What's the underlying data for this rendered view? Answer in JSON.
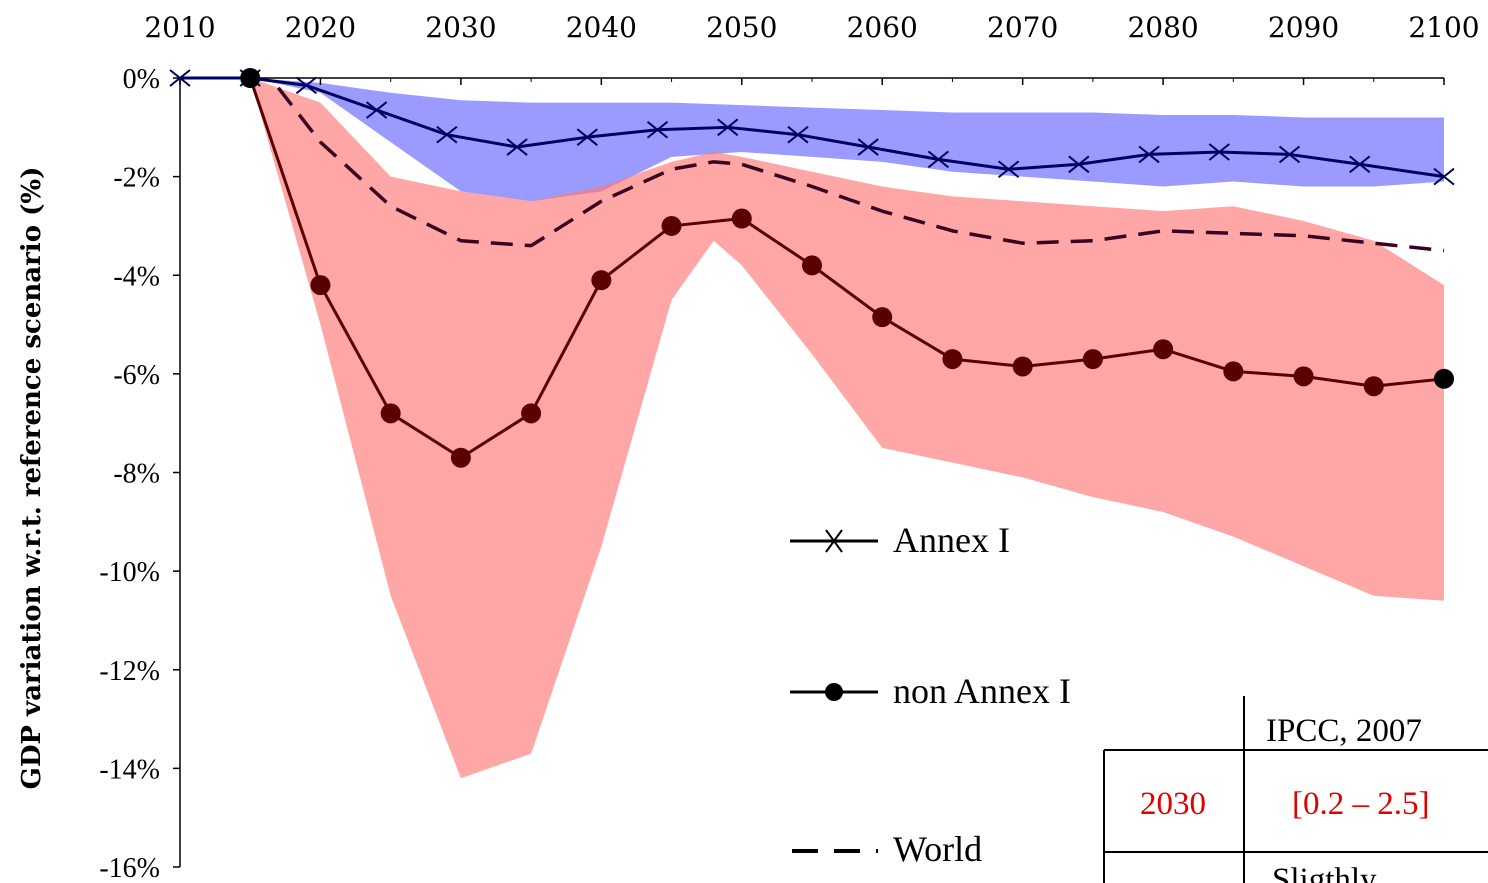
{
  "chart_data": {
    "type": "line",
    "ylabel": "GDP variation w.r.t. reference scenario (%)",
    "xlabel": "",
    "xlim": [
      2010,
      2100
    ],
    "ylim": [
      -16,
      0
    ],
    "x_ticks": [
      2010,
      2020,
      2030,
      2040,
      2050,
      2060,
      2070,
      2080,
      2090,
      2100
    ],
    "y_ticks": [
      0,
      -2,
      -4,
      -6,
      -8,
      -10,
      -12,
      -14,
      -16
    ],
    "y_tick_labels": [
      "0%",
      "-2%",
      "-4%",
      "-6%",
      "-8%",
      "-10%",
      "-12%",
      "-14%",
      "-16%"
    ],
    "x_axis_position": "top",
    "grid": false,
    "legend_position": "center-bottom",
    "series": [
      {
        "name": "Annex I",
        "color": "#000060",
        "marker": "x",
        "style": "solid",
        "x": [
          2010,
          2015,
          2019,
          2024,
          2029,
          2034,
          2039,
          2044,
          2049,
          2054,
          2059,
          2064,
          2069,
          2074,
          2079,
          2084,
          2089,
          2094,
          2100
        ],
        "values": [
          0.0,
          0.0,
          -0.15,
          -0.65,
          -1.15,
          -1.4,
          -1.2,
          -1.05,
          -1.0,
          -1.15,
          -1.4,
          -1.65,
          -1.85,
          -1.75,
          -1.55,
          -1.5,
          -1.55,
          -1.75,
          -2.0
        ]
      },
      {
        "name": "non Annex I",
        "color": "#5a0000",
        "marker": "circle",
        "style": "solid",
        "x": [
          2015,
          2020,
          2025,
          2030,
          2035,
          2040,
          2045,
          2050,
          2055,
          2060,
          2065,
          2070,
          2075,
          2080,
          2085,
          2090,
          2095,
          2100
        ],
        "values": [
          0.0,
          -4.2,
          -6.8,
          -7.7,
          -6.8,
          -4.1,
          -3.0,
          -2.85,
          -3.8,
          -4.85,
          -5.7,
          -5.85,
          -5.7,
          -5.5,
          -5.95,
          -6.05,
          -6.25,
          -6.1
        ]
      },
      {
        "name": "World",
        "color": "#3a0020",
        "marker": "none",
        "style": "dashed",
        "x": [
          2017,
          2020,
          2025,
          2030,
          2035,
          2040,
          2045,
          2048,
          2050,
          2055,
          2060,
          2065,
          2070,
          2075,
          2080,
          2085,
          2090,
          2095,
          2100
        ],
        "values": [
          -0.2,
          -1.3,
          -2.6,
          -3.3,
          -3.4,
          -2.5,
          -1.85,
          -1.7,
          -1.75,
          -2.2,
          -2.7,
          -3.1,
          -3.35,
          -3.3,
          -3.1,
          -3.15,
          -3.2,
          -3.35,
          -3.5
        ]
      }
    ],
    "bands": [
      {
        "name": "Annex I range",
        "color": "#6666ff",
        "x": [
          2015,
          2020,
          2025,
          2030,
          2035,
          2040,
          2045,
          2050,
          2055,
          2060,
          2065,
          2070,
          2075,
          2080,
          2085,
          2090,
          2095,
          2100
        ],
        "upper": [
          0.0,
          -0.1,
          -0.3,
          -0.45,
          -0.5,
          -0.5,
          -0.5,
          -0.55,
          -0.6,
          -0.65,
          -0.7,
          -0.7,
          -0.7,
          -0.75,
          -0.75,
          -0.8,
          -0.8,
          -0.8
        ],
        "lower": [
          0.0,
          -0.3,
          -1.3,
          -2.3,
          -2.5,
          -2.3,
          -1.6,
          -1.5,
          -1.6,
          -1.7,
          -1.9,
          -2.0,
          -2.1,
          -2.2,
          -2.1,
          -2.2,
          -2.2,
          -2.1
        ]
      },
      {
        "name": "non Annex I range",
        "color": "#ff7777",
        "x": [
          2015,
          2020,
          2025,
          2030,
          2035,
          2040,
          2045,
          2048,
          2050,
          2055,
          2060,
          2065,
          2070,
          2075,
          2080,
          2085,
          2090,
          2095,
          2100
        ],
        "upper": [
          0.0,
          -0.5,
          -2.0,
          -2.3,
          -2.5,
          -2.2,
          -1.7,
          -1.5,
          -1.6,
          -1.9,
          -2.2,
          -2.4,
          -2.5,
          -2.6,
          -2.7,
          -2.6,
          -2.9,
          -3.3,
          -4.2
        ],
        "lower": [
          0.0,
          -5.0,
          -10.5,
          -14.2,
          -13.7,
          -9.5,
          -4.5,
          -3.3,
          -3.8,
          -5.6,
          -7.5,
          -7.8,
          -8.1,
          -8.5,
          -8.8,
          -9.3,
          -9.9,
          -10.5,
          -10.6
        ]
      }
    ],
    "table": {
      "header": [
        "",
        "IPCC, 2007"
      ],
      "rows": [
        [
          "2030",
          "[0.2 – 2.5]"
        ],
        [
          "",
          "Sligthly"
        ]
      ]
    }
  }
}
